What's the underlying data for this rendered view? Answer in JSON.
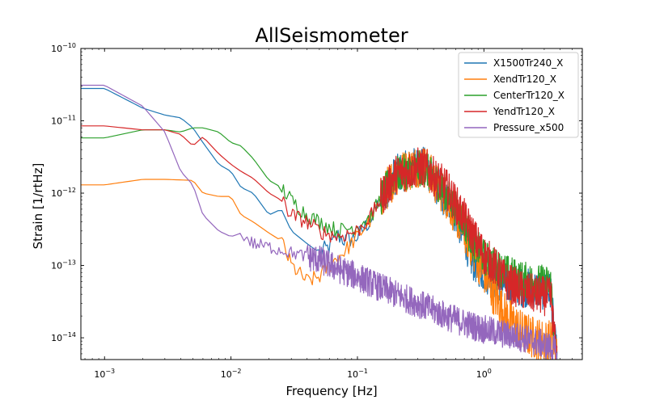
{
  "chart_data": {
    "type": "line",
    "title": "AllSeismometer",
    "xlabel": "Frequency [Hz]",
    "ylabel": "Strain [1/rtHz]",
    "xscale": "log",
    "yscale": "log",
    "xlim": [
      0.00065,
      6.0
    ],
    "ylim": [
      5e-15,
      1e-10
    ],
    "grid": false,
    "legend_position": "top-right",
    "x_ticks": [
      {
        "value": 0.001,
        "base": "10",
        "exp": "−3"
      },
      {
        "value": 0.01,
        "base": "10",
        "exp": "−2"
      },
      {
        "value": 0.1,
        "base": "10",
        "exp": "−1"
      },
      {
        "value": 1,
        "base": "10",
        "exp": "0"
      }
    ],
    "y_ticks": [
      {
        "value": 1e-14,
        "base": "10",
        "exp": "−14"
      },
      {
        "value": 1e-13,
        "base": "10",
        "exp": "−13"
      },
      {
        "value": 1e-12,
        "base": "10",
        "exp": "−12"
      },
      {
        "value": 1e-11,
        "base": "10",
        "exp": "−11"
      },
      {
        "value": 1e-10,
        "base": "10",
        "exp": "−10"
      }
    ],
    "series": [
      {
        "name": "X1500Tr240_X",
        "color": "#1f77b4",
        "points": [
          [
            0.00065,
            2.8e-11
          ],
          [
            0.001,
            2.8e-11
          ],
          [
            0.002,
            1.5e-11
          ],
          [
            0.003,
            1.2e-11
          ],
          [
            0.004,
            1.1e-11
          ],
          [
            0.005,
            8e-12
          ],
          [
            0.006,
            5e-12
          ],
          [
            0.008,
            2.5e-12
          ],
          [
            0.01,
            2e-12
          ],
          [
            0.012,
            1.2e-12
          ],
          [
            0.015,
            1e-12
          ],
          [
            0.02,
            5e-13
          ],
          [
            0.025,
            6e-13
          ],
          [
            0.03,
            3e-13
          ],
          [
            0.04,
            2e-13
          ],
          [
            0.05,
            1.5e-13
          ],
          [
            0.06,
            1.8e-13
          ],
          [
            0.07,
            2.6e-13
          ],
          [
            0.08,
            2.2e-13
          ],
          [
            0.1,
            2.5e-13
          ],
          [
            0.13,
            4.5e-13
          ],
          [
            0.15,
            8e-13
          ],
          [
            0.2,
            1.8e-12
          ],
          [
            0.25,
            2.1e-12
          ],
          [
            0.3,
            2.4e-12
          ],
          [
            0.35,
            2.3e-12
          ],
          [
            0.4,
            1.5e-12
          ],
          [
            0.5,
            8e-13
          ],
          [
            0.6,
            5e-13
          ],
          [
            0.7,
            2.5e-13
          ],
          [
            0.8,
            1.2e-13
          ],
          [
            1.0,
            8e-14
          ],
          [
            1.2,
            6.5e-14
          ],
          [
            1.5,
            5.5e-14
          ],
          [
            2.0,
            5e-14
          ],
          [
            2.5,
            4.8e-14
          ],
          [
            3.0,
            4.5e-14
          ],
          [
            3.4,
            4.3e-14
          ],
          [
            3.6,
            1e-14
          ],
          [
            3.8,
            5e-15
          ]
        ],
        "noisy_from": 0.05,
        "noise": 0.25,
        "dense_from": 0.15,
        "dense_noise": 0.55
      },
      {
        "name": "XendTr120_X",
        "color": "#ff7f0e",
        "points": [
          [
            0.00065,
            1.3e-12
          ],
          [
            0.001,
            1.3e-12
          ],
          [
            0.002,
            1.55e-12
          ],
          [
            0.003,
            1.55e-12
          ],
          [
            0.005,
            1.5e-12
          ],
          [
            0.006,
            1e-12
          ],
          [
            0.008,
            9e-13
          ],
          [
            0.01,
            9e-13
          ],
          [
            0.012,
            5e-13
          ],
          [
            0.015,
            4e-13
          ],
          [
            0.02,
            2.8e-13
          ],
          [
            0.025,
            2.2e-13
          ],
          [
            0.03,
            1e-13
          ],
          [
            0.04,
            6e-14
          ],
          [
            0.05,
            7e-14
          ],
          [
            0.06,
            1e-13
          ],
          [
            0.07,
            1.3e-13
          ],
          [
            0.08,
            1.6e-13
          ],
          [
            0.1,
            2.5e-13
          ],
          [
            0.13,
            4.5e-13
          ],
          [
            0.15,
            8e-13
          ],
          [
            0.2,
            1.8e-12
          ],
          [
            0.25,
            2.1e-12
          ],
          [
            0.3,
            2.4e-12
          ],
          [
            0.35,
            2.3e-12
          ],
          [
            0.4,
            1.5e-12
          ],
          [
            0.5,
            9e-13
          ],
          [
            0.6,
            5e-13
          ],
          [
            0.7,
            3e-13
          ],
          [
            0.8,
            1.8e-13
          ],
          [
            1.0,
            8e-14
          ],
          [
            1.2,
            4e-14
          ],
          [
            1.5,
            2e-14
          ],
          [
            2.0,
            1.2e-14
          ],
          [
            2.5,
            1e-14
          ],
          [
            3.0,
            9e-15
          ],
          [
            3.5,
            9e-15
          ],
          [
            3.8,
            5e-15
          ]
        ],
        "noisy_from": 0.025,
        "noise": 0.22,
        "dense_from": 0.15,
        "dense_noise": 0.6
      },
      {
        "name": "CenterTr120_X",
        "color": "#2ca02c",
        "points": [
          [
            0.00065,
            5.8e-12
          ],
          [
            0.001,
            5.8e-12
          ],
          [
            0.002,
            7.5e-12
          ],
          [
            0.003,
            7.5e-12
          ],
          [
            0.004,
            7e-12
          ],
          [
            0.005,
            8e-12
          ],
          [
            0.006,
            8e-12
          ],
          [
            0.008,
            7e-12
          ],
          [
            0.01,
            5e-12
          ],
          [
            0.012,
            4.5e-12
          ],
          [
            0.015,
            3e-12
          ],
          [
            0.02,
            1.5e-12
          ],
          [
            0.025,
            1.2e-12
          ],
          [
            0.03,
            8e-13
          ],
          [
            0.04,
            5e-13
          ],
          [
            0.05,
            4e-13
          ],
          [
            0.07,
            3e-13
          ],
          [
            0.1,
            3.5e-13
          ],
          [
            0.13,
            5e-13
          ],
          [
            0.15,
            8e-13
          ],
          [
            0.2,
            1.8e-12
          ],
          [
            0.25,
            2e-12
          ],
          [
            0.3,
            2.2e-12
          ],
          [
            0.35,
            2.1e-12
          ],
          [
            0.4,
            1.6e-12
          ],
          [
            0.5,
            1e-12
          ],
          [
            0.6,
            6e-13
          ],
          [
            0.7,
            4e-13
          ],
          [
            0.8,
            2.2e-13
          ],
          [
            1.0,
            1.3e-13
          ],
          [
            1.2,
            1e-13
          ],
          [
            1.5,
            8e-14
          ],
          [
            2.0,
            6.5e-14
          ],
          [
            2.5,
            6e-14
          ],
          [
            3.0,
            5.8e-14
          ],
          [
            3.4,
            5.5e-14
          ],
          [
            3.6,
            1e-14
          ],
          [
            3.8,
            5e-15
          ]
        ],
        "noisy_from": 0.025,
        "noise": 0.22,
        "dense_from": 0.15,
        "dense_noise": 0.5
      },
      {
        "name": "YendTr120_X",
        "color": "#d62728",
        "points": [
          [
            0.00065,
            8.5e-12
          ],
          [
            0.001,
            8.5e-12
          ],
          [
            0.002,
            7.5e-12
          ],
          [
            0.003,
            7.5e-12
          ],
          [
            0.004,
            6.5e-12
          ],
          [
            0.005,
            4.5e-12
          ],
          [
            0.006,
            6e-12
          ],
          [
            0.008,
            3.5e-12
          ],
          [
            0.01,
            2.5e-12
          ],
          [
            0.012,
            2e-12
          ],
          [
            0.015,
            1.6e-12
          ],
          [
            0.02,
            1e-12
          ],
          [
            0.025,
            8e-13
          ],
          [
            0.03,
            5e-13
          ],
          [
            0.04,
            4e-13
          ],
          [
            0.05,
            3e-13
          ],
          [
            0.07,
            2.5e-13
          ],
          [
            0.1,
            3e-13
          ],
          [
            0.13,
            5e-13
          ],
          [
            0.15,
            8e-13
          ],
          [
            0.2,
            1.8e-12
          ],
          [
            0.25,
            2e-12
          ],
          [
            0.3,
            2.3e-12
          ],
          [
            0.35,
            2.2e-12
          ],
          [
            0.4,
            1.7e-12
          ],
          [
            0.5,
            1.2e-12
          ],
          [
            0.6,
            7e-13
          ],
          [
            0.7,
            4.5e-13
          ],
          [
            0.8,
            2.8e-13
          ],
          [
            1.0,
            1.4e-13
          ],
          [
            1.2,
            1e-13
          ],
          [
            1.5,
            6e-14
          ],
          [
            2.0,
            4.5e-14
          ],
          [
            2.5,
            4e-14
          ],
          [
            3.0,
            3.8e-14
          ],
          [
            3.4,
            3.6e-14
          ],
          [
            3.6,
            1e-14
          ],
          [
            3.8,
            5e-15
          ]
        ],
        "noisy_from": 0.025,
        "noise": 0.22,
        "dense_from": 0.15,
        "dense_noise": 0.55
      },
      {
        "name": "Pressure_x500",
        "color": "#9467bd",
        "points": [
          [
            0.00065,
            3.1e-11
          ],
          [
            0.001,
            3.1e-11
          ],
          [
            0.002,
            1.6e-11
          ],
          [
            0.003,
            7e-12
          ],
          [
            0.004,
            2e-12
          ],
          [
            0.005,
            1.3e-12
          ],
          [
            0.006,
            5e-13
          ],
          [
            0.008,
            3e-13
          ],
          [
            0.01,
            2.5e-13
          ],
          [
            0.012,
            2.8e-13
          ],
          [
            0.015,
            2e-13
          ],
          [
            0.02,
            1.8e-13
          ],
          [
            0.03,
            1.5e-13
          ],
          [
            0.05,
            1.2e-13
          ],
          [
            0.07,
            9e-14
          ],
          [
            0.1,
            7e-14
          ],
          [
            0.15,
            5e-14
          ],
          [
            0.2,
            4e-14
          ],
          [
            0.3,
            3e-14
          ],
          [
            0.5,
            2e-14
          ],
          [
            0.7,
            1.6e-14
          ],
          [
            1.0,
            1.3e-14
          ],
          [
            1.5,
            1.1e-14
          ],
          [
            2.0,
            1e-14
          ],
          [
            3.0,
            8e-15
          ],
          [
            3.6,
            7e-15
          ],
          [
            3.8,
            5e-15
          ]
        ],
        "noisy_from": 0.012,
        "noise": 0.18,
        "dense_from": 0.04,
        "dense_noise": 0.4
      }
    ]
  }
}
